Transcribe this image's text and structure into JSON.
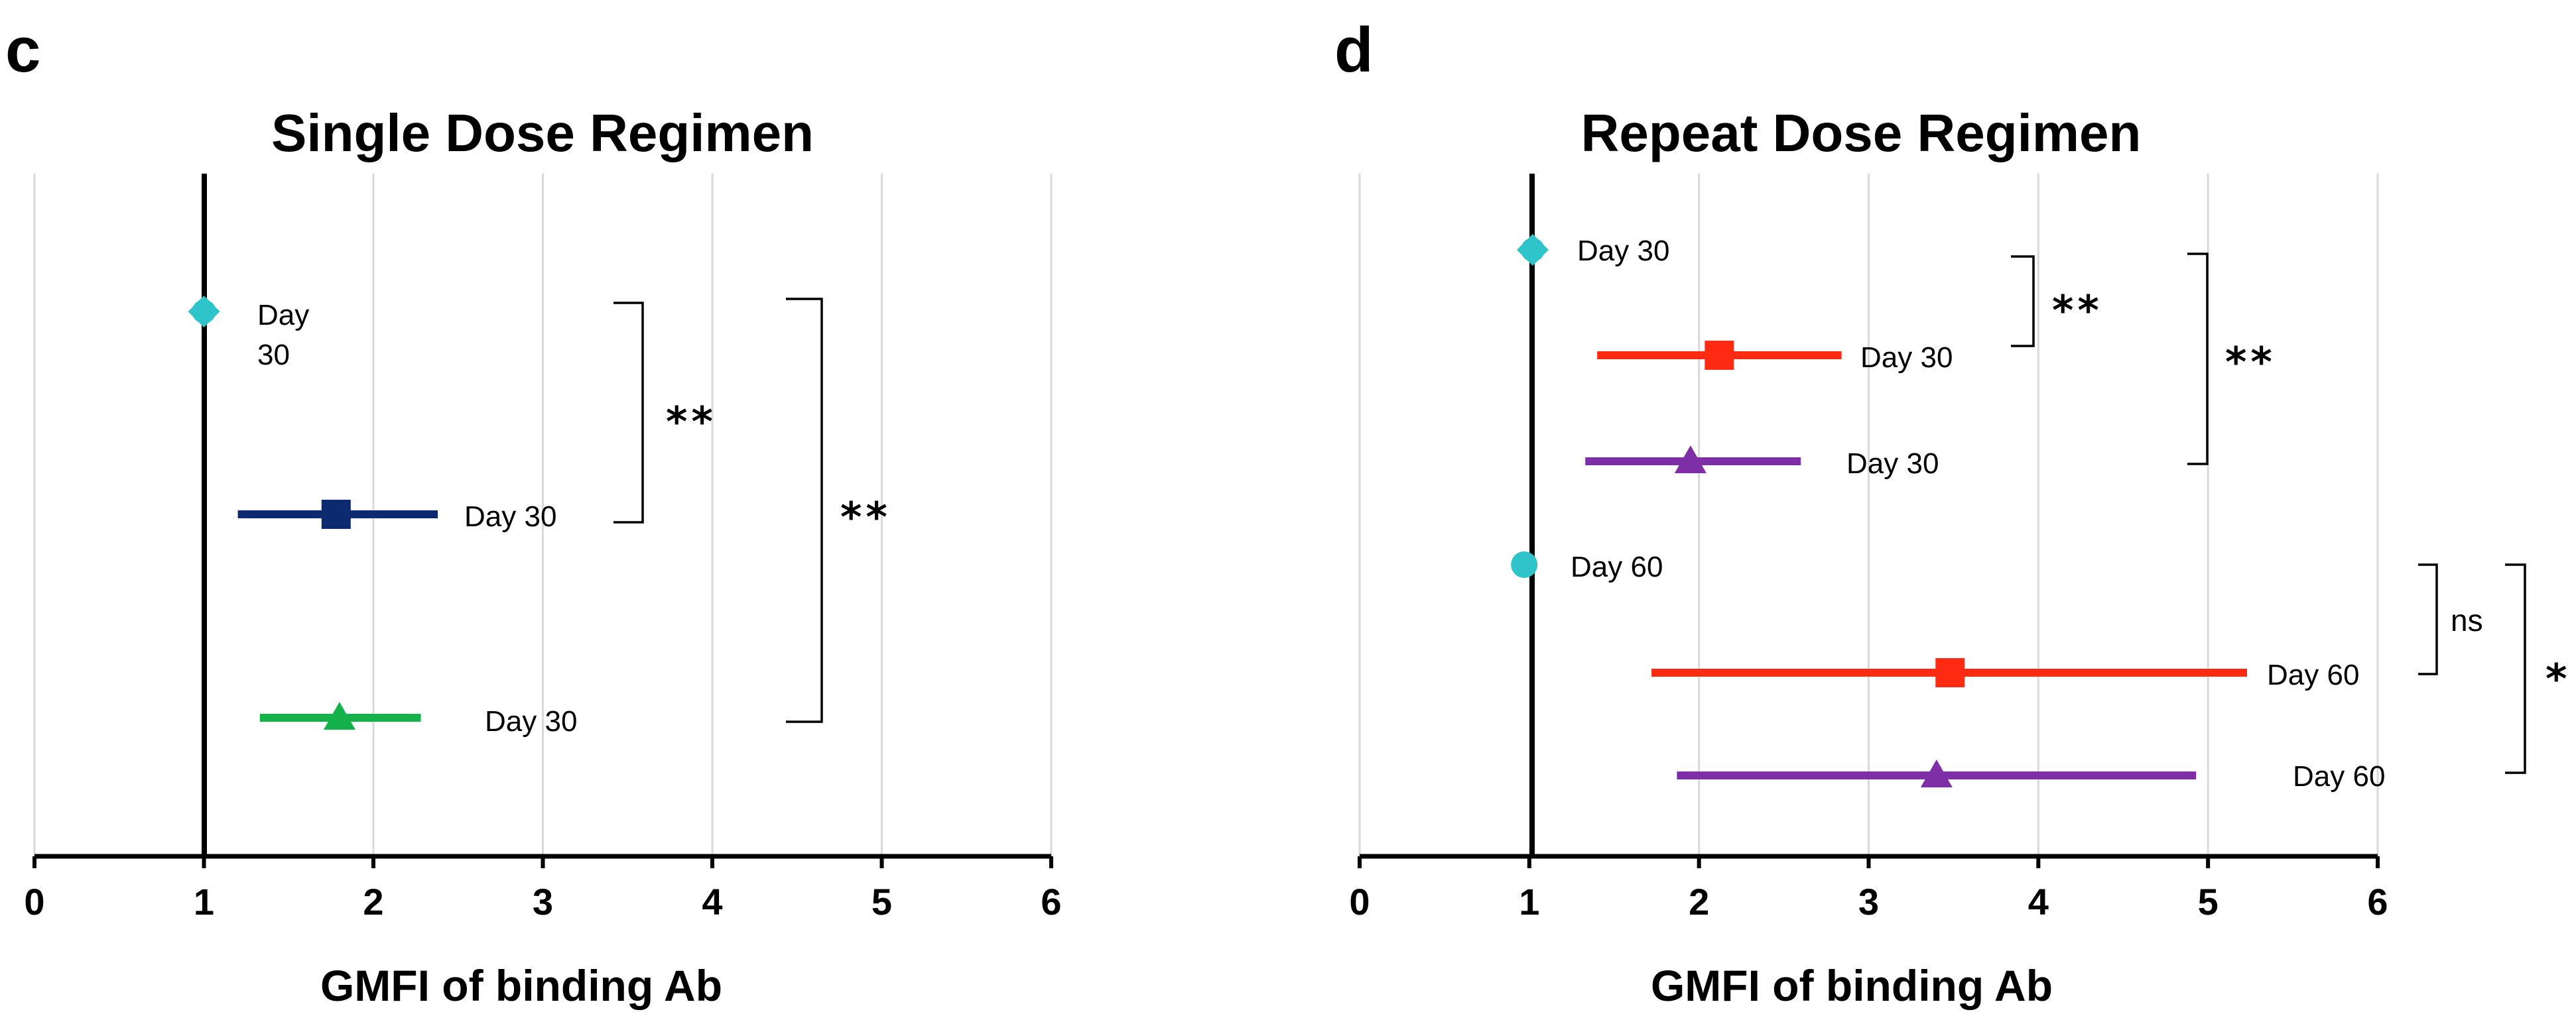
{
  "chart_data": [
    {
      "type": "scatter",
      "panel_label": "c",
      "title": "Single Dose Regimen",
      "xlabel": "GMFI of binding Ab",
      "ylabel": "",
      "xlim": [
        0,
        6
      ],
      "xticks": [
        "0",
        "1",
        "2",
        "3",
        "4",
        "5",
        "6"
      ],
      "grid": "vertical",
      "reference_line_x": 1,
      "points": [
        {
          "label": "Day\n30",
          "x": 1.0,
          "low": 1.0,
          "high": 1.0,
          "marker": "diamond",
          "color": "#2ec4c9"
        },
        {
          "label": "Day 30",
          "x": 1.78,
          "low": 1.2,
          "high": 2.38,
          "marker": "square",
          "color": "#0b2a6f"
        },
        {
          "label": "Day 30",
          "x": 1.8,
          "low": 1.33,
          "high": 2.28,
          "marker": "triangle",
          "color": "#13b24a"
        }
      ],
      "comparisons": [
        {
          "from": 0,
          "to": 1,
          "label": "**"
        },
        {
          "from": 0,
          "to": 2,
          "label": "**"
        }
      ]
    },
    {
      "type": "scatter",
      "panel_label": "d",
      "title": "Repeat Dose Regimen",
      "xlabel": "GMFI of binding Ab",
      "ylabel": "",
      "xlim": [
        0,
        6
      ],
      "xticks": [
        "0",
        "1",
        "2",
        "3",
        "4",
        "5",
        "6"
      ],
      "grid": "vertical",
      "reference_line_x": 1,
      "points": [
        {
          "label": "Day 30",
          "x": 1.02,
          "low": 1.02,
          "high": 1.02,
          "marker": "diamond",
          "color": "#2ec4c9"
        },
        {
          "label": "Day 30",
          "x": 2.12,
          "low": 1.4,
          "high": 2.84,
          "marker": "square",
          "color": "#ff2a12"
        },
        {
          "label": "Day 30",
          "x": 1.95,
          "low": 1.33,
          "high": 2.6,
          "marker": "triangle",
          "color": "#7f2fa6"
        },
        {
          "label": "Day 60",
          "x": 0.97,
          "low": 0.97,
          "high": 0.97,
          "marker": "circle",
          "color": "#2ec4c9"
        },
        {
          "label": "Day 60",
          "x": 3.48,
          "low": 1.72,
          "high": 5.23,
          "marker": "square",
          "color": "#ff2a12"
        },
        {
          "label": "Day 60",
          "x": 3.4,
          "low": 1.87,
          "high": 4.93,
          "marker": "triangle",
          "color": "#7f2fa6"
        }
      ],
      "comparisons": [
        {
          "from": 0,
          "to": 1,
          "label": "**"
        },
        {
          "from": 0,
          "to": 2,
          "label": "**"
        },
        {
          "from": 3,
          "to": 4,
          "label": "ns"
        },
        {
          "from": 3,
          "to": 5,
          "label": "*"
        }
      ]
    }
  ]
}
